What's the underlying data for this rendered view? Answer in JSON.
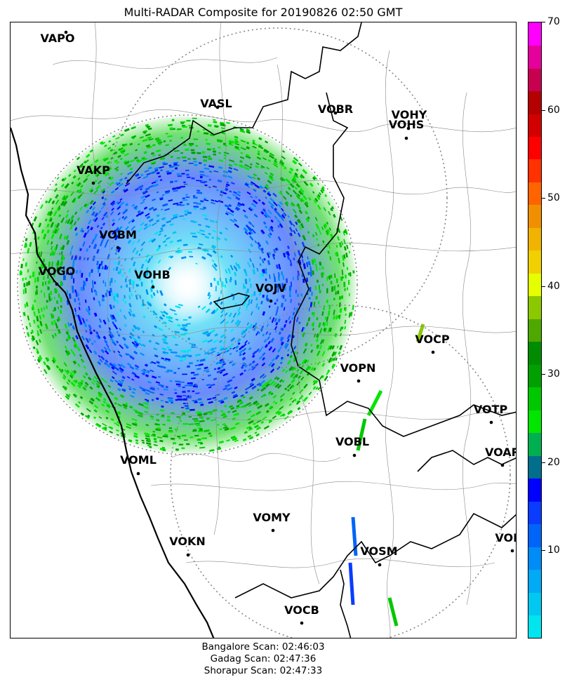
{
  "title": "Multi-RADAR Composite for 20190826 02:50 GMT",
  "stations": [
    {
      "code": "VAPO"
    },
    {
      "code": "VASL"
    },
    {
      "code": "VOBR"
    },
    {
      "code": "VOHY"
    },
    {
      "code": "VOHS"
    },
    {
      "code": "VAKP"
    },
    {
      "code": "VOBM"
    },
    {
      "code": "VOGO"
    },
    {
      "code": "VOHB"
    },
    {
      "code": "VOJV"
    },
    {
      "code": "VOCP"
    },
    {
      "code": "VOPN"
    },
    {
      "code": "VOTP"
    },
    {
      "code": "VOBL"
    },
    {
      "code": "VOAR"
    },
    {
      "code": "VOML"
    },
    {
      "code": "VOMY"
    },
    {
      "code": "VOKN"
    },
    {
      "code": "VOSM"
    },
    {
      "code": "VOPC"
    },
    {
      "code": "VOCB"
    }
  ],
  "colorbar": {
    "min": 0,
    "max": 70,
    "ticks": [
      "70",
      "60",
      "50",
      "40",
      "30",
      "20",
      "10"
    ],
    "tick_values": [
      70,
      60,
      50,
      40,
      30,
      20,
      10
    ],
    "colors": [
      "#00e5ee",
      "#00c8f0",
      "#00aaf5",
      "#008cf7",
      "#0064f8",
      "#0a3cff",
      "#0000ff",
      "#006e8c",
      "#00b050",
      "#00e600",
      "#00c800",
      "#00a000",
      "#008c00",
      "#4ea800",
      "#8cc800",
      "#e6ff00",
      "#f0d000",
      "#f0b400",
      "#f09000",
      "#ff6400",
      "#ff3200",
      "#ff0000",
      "#d20000",
      "#b40000",
      "#c80050",
      "#e6009b",
      "#ff00ff"
    ]
  },
  "footer": {
    "line1": "Bangalore Scan: 02:46:03",
    "line2": "Gadag Scan: 02:47:36",
    "line3": "Shorapur Scan: 02:47:33"
  }
}
